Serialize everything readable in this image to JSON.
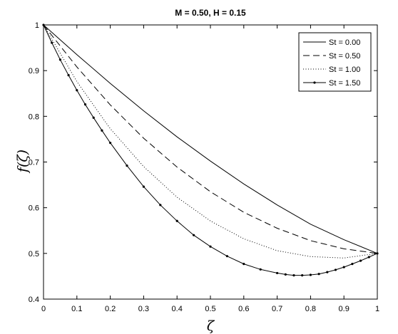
{
  "chart_data": {
    "type": "line",
    "title": "M = 0.50, H = 0.15",
    "xlabel": "ζ",
    "ylabel": "f(ζ)",
    "xlim": [
      0,
      1
    ],
    "ylim": [
      0.4,
      1
    ],
    "xticks": [
      "0",
      "0.1",
      "0.2",
      "0.3",
      "0.4",
      "0.5",
      "0.6",
      "0.7",
      "0.8",
      "0.9",
      "1"
    ],
    "yticks": [
      "0.4",
      "0.5",
      "0.6",
      "0.7",
      "0.8",
      "0.9",
      "1"
    ],
    "grid": false,
    "legend_position": "top-right",
    "series": [
      {
        "name": "St = 0.00",
        "style": "solid",
        "color": "#000000",
        "x": [
          0,
          0.1,
          0.2,
          0.3,
          0.4,
          0.5,
          0.6,
          0.7,
          0.8,
          0.9,
          1.0
        ],
        "y": [
          1.0,
          0.935,
          0.872,
          0.812,
          0.755,
          0.702,
          0.652,
          0.606,
          0.564,
          0.53,
          0.5
        ]
      },
      {
        "name": "St = 0.50",
        "style": "dashed",
        "color": "#000000",
        "x": [
          0,
          0.1,
          0.2,
          0.3,
          0.4,
          0.5,
          0.6,
          0.7,
          0.8,
          0.9,
          1.0
        ],
        "y": [
          1.0,
          0.908,
          0.825,
          0.752,
          0.689,
          0.635,
          0.59,
          0.555,
          0.528,
          0.51,
          0.5
        ]
      },
      {
        "name": "St = 1.00",
        "style": "dotted",
        "color": "#000000",
        "x": [
          0,
          0.1,
          0.2,
          0.3,
          0.4,
          0.5,
          0.6,
          0.7,
          0.8,
          0.9,
          1.0
        ],
        "y": [
          1.0,
          0.876,
          0.773,
          0.69,
          0.623,
          0.571,
          0.532,
          0.506,
          0.493,
          0.49,
          0.5
        ]
      },
      {
        "name": "St = 1.50",
        "style": "solid-marker",
        "color": "#000000",
        "x": [
          0,
          0.025,
          0.05,
          0.075,
          0.1,
          0.125,
          0.15,
          0.175,
          0.2,
          0.25,
          0.3,
          0.35,
          0.4,
          0.45,
          0.5,
          0.55,
          0.6,
          0.65,
          0.7,
          0.725,
          0.75,
          0.775,
          0.8,
          0.825,
          0.85,
          0.875,
          0.9,
          0.925,
          0.95,
          0.975,
          1.0
        ],
        "y": [
          1.0,
          0.961,
          0.924,
          0.89,
          0.857,
          0.826,
          0.797,
          0.769,
          0.742,
          0.692,
          0.646,
          0.606,
          0.571,
          0.54,
          0.515,
          0.494,
          0.477,
          0.465,
          0.457,
          0.454,
          0.452,
          0.452,
          0.453,
          0.455,
          0.459,
          0.464,
          0.47,
          0.477,
          0.484,
          0.492,
          0.5
        ]
      }
    ]
  }
}
